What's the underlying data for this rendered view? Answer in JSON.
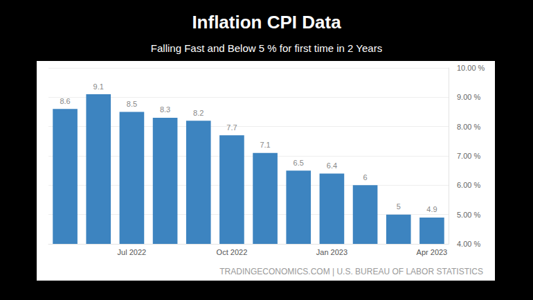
{
  "chart_data": {
    "type": "bar",
    "title": "Inflation CPI Data",
    "subtitle": "Falling Fast and Below 5 % for first time in 2 Years",
    "source": "TRADINGECONOMICS.COM | U.S. BUREAU OF LABOR STATISTICS",
    "categories": [
      null,
      null,
      "Jul 2022",
      null,
      null,
      "Oct 2022",
      null,
      null,
      "Jan 2023",
      null,
      null,
      "Apr 2023"
    ],
    "values": [
      8.6,
      9.1,
      8.5,
      8.3,
      8.2,
      7.7,
      7.1,
      6.5,
      6.4,
      6,
      5,
      4.9
    ],
    "color": "#3d84c0",
    "ylim": [
      4,
      10
    ],
    "yticks": [
      {
        "value": 4,
        "label": "4.00 %"
      },
      {
        "value": 5,
        "label": "5.00 %"
      },
      {
        "value": 6,
        "label": "6.00 %"
      },
      {
        "value": 7,
        "label": "7.00 %"
      },
      {
        "value": 8,
        "label": "8.00 %"
      },
      {
        "value": 9,
        "label": "9.00 %"
      },
      {
        "value": 10,
        "label": "10.00 %"
      }
    ],
    "grid": true,
    "data_labels": true
  }
}
